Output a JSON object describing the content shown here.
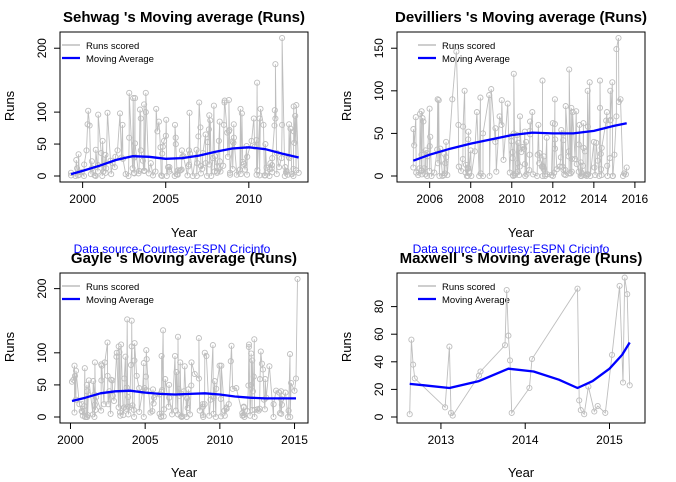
{
  "colors": {
    "runs": "#bebebe",
    "moving_average": "#0000ff",
    "source": "#0000ff"
  },
  "chart_data": [
    {
      "type": "line",
      "title": "Sehwag 's Moving average (Runs)",
      "xlabel": "Year",
      "ylabel": "Runs",
      "xlim": [
        1999,
        2013.2
      ],
      "ylim": [
        0,
        216
      ],
      "xticks": [
        2000,
        2005,
        2010
      ],
      "yticks": [
        0,
        50,
        100,
        200
      ],
      "legend": [
        "Runs scored",
        "Moving Average"
      ],
      "legend_position": "top-left",
      "source_note": "Data source-Courtesy:ESPN Cricinfo",
      "seed": 11,
      "spikes": [
        [
          2002.8,
          130
        ],
        [
          2003.8,
          130
        ],
        [
          2008.8,
          119
        ],
        [
          2010.5,
          146
        ],
        [
          2011.6,
          175
        ],
        [
          2012.0,
          216
        ],
        [
          2012.7,
          109
        ]
      ],
      "series": [
        {
          "name": "Runs scored",
          "x": [
            1999.3,
            1999.8,
            2000.5,
            2001.2,
            2001.5,
            2001.8,
            2002.1,
            2002.4,
            2002.8,
            2003.1,
            2003.5,
            2003.8,
            2004.1,
            2004.5,
            2004.9,
            2005.2,
            2005.6,
            2006.0,
            2006.4,
            2006.9,
            2007.4,
            2007.9,
            2008.2,
            2008.5,
            2008.8,
            2009.1,
            2009.5,
            2009.9,
            2010.3,
            2010.7,
            2011.0,
            2011.3,
            2011.6,
            2012.0,
            2012.4,
            2012.7,
            2013.0
          ],
          "y": [
            5,
            2,
            3,
            55,
            99,
            20,
            40,
            80,
            60,
            30,
            90,
            100,
            20,
            70,
            55,
            10,
            60,
            30,
            40,
            20,
            65,
            110,
            55,
            80,
            70,
            60,
            105,
            30,
            90,
            105,
            50,
            20,
            90,
            80,
            30,
            70,
            5
          ]
        },
        {
          "name": "Moving Average",
          "x": [
            1999.3,
            2000,
            2001,
            2002,
            2003,
            2004,
            2005,
            2006,
            2007,
            2008,
            2009,
            2010,
            2011,
            2012,
            2013
          ],
          "y": [
            3,
            8,
            16,
            25,
            31,
            30,
            27,
            28,
            32,
            38,
            43,
            45,
            42,
            35,
            29
          ]
        }
      ]
    },
    {
      "type": "line",
      "title": "Devilliers 's Moving average (Runs)",
      "xlabel": "Year",
      "ylabel": "Runs",
      "xlim": [
        2004.7,
        2016.2
      ],
      "ylim": [
        0,
        162
      ],
      "xticks": [
        2006,
        2008,
        2010,
        2012,
        2014,
        2016
      ],
      "yticks": [
        0,
        50,
        100,
        150
      ],
      "legend": [
        "Runs scored",
        "Moving Average"
      ],
      "legend_position": "top-left",
      "source_note": "Data source-Courtesy:ESPN Cricinfo",
      "seed": 23,
      "spikes": [
        [
          2007.3,
          146
        ],
        [
          2009.0,
          102
        ],
        [
          2010.1,
          120
        ],
        [
          2011.5,
          112
        ],
        [
          2012.8,
          125
        ],
        [
          2013.8,
          110
        ],
        [
          2014.3,
          112
        ],
        [
          2014.8,
          100
        ],
        [
          2015.1,
          149
        ],
        [
          2015.2,
          162
        ]
      ],
      "series": [
        {
          "name": "Runs scored",
          "x": [
            2005.2,
            2005.6,
            2006.0,
            2006.4,
            2006.8,
            2007.1,
            2007.4,
            2007.7,
            2008.0,
            2008.3,
            2008.6,
            2008.9,
            2009.2,
            2009.5,
            2009.8,
            2010.1,
            2010.4,
            2010.7,
            2011.0,
            2011.3,
            2011.7,
            2012.1,
            2012.5,
            2012.9,
            2013.3,
            2013.7,
            2014.0,
            2014.3,
            2014.6,
            2014.9,
            2015.1,
            2015.3,
            2015.6
          ],
          "y": [
            10,
            25,
            35,
            15,
            40,
            90,
            60,
            100,
            30,
            75,
            50,
            95,
            40,
            60,
            85,
            50,
            70,
            40,
            75,
            60,
            45,
            90,
            50,
            80,
            60,
            100,
            40,
            80,
            65,
            110,
            70,
            90,
            10
          ]
        },
        {
          "name": "Moving Average",
          "x": [
            2005.2,
            2006,
            2007,
            2008,
            2009,
            2010,
            2011,
            2012,
            2013,
            2014,
            2015,
            2015.6
          ],
          "y": [
            18,
            25,
            32,
            38,
            43,
            48,
            51,
            50,
            50,
            53,
            59,
            62
          ]
        }
      ]
    },
    {
      "type": "line",
      "title": "Gayle 's Moving average (Runs)",
      "xlabel": "Year",
      "ylabel": "Runs",
      "xlim": [
        1999.7,
        2015.5
      ],
      "ylim": [
        0,
        215
      ],
      "xticks": [
        2000,
        2005,
        2010,
        2015
      ],
      "yticks": [
        0,
        50,
        100,
        200
      ],
      "legend": [
        "Runs scored",
        "Moving Average"
      ],
      "legend_position": "top-left",
      "seed": 37,
      "spikes": [
        [
          2003.8,
          152
        ],
        [
          2004.1,
          150
        ],
        [
          2006.2,
          135
        ],
        [
          2007.2,
          125
        ],
        [
          2008.6,
          123
        ],
        [
          2012.1,
          99
        ],
        [
          2015.2,
          215
        ]
      ],
      "series": [
        {
          "name": "Runs scored",
          "x": [
            2000.1,
            2000.6,
            2001.1,
            2001.6,
            2002.1,
            2002.6,
            2003.1,
            2003.6,
            2004.1,
            2004.6,
            2005.1,
            2005.6,
            2006.1,
            2006.6,
            2007.1,
            2007.6,
            2008.1,
            2008.6,
            2009.1,
            2009.6,
            2010.1,
            2010.6,
            2011.1,
            2011.6,
            2012.1,
            2012.6,
            2013.1,
            2013.6,
            2014.1,
            2014.6,
            2015.1
          ],
          "y": [
            55,
            20,
            50,
            35,
            80,
            40,
            100,
            60,
            110,
            45,
            90,
            30,
            95,
            50,
            70,
            40,
            85,
            60,
            95,
            30,
            80,
            20,
            45,
            15,
            50,
            10,
            30,
            20,
            40,
            10,
            60
          ]
        },
        {
          "name": "Moving Average",
          "x": [
            2000.1,
            2001,
            2002,
            2003,
            2004,
            2005,
            2006,
            2007,
            2008,
            2009,
            2010,
            2011,
            2012,
            2013,
            2014,
            2015.1
          ],
          "y": [
            25,
            30,
            37,
            40,
            41,
            38,
            36,
            35,
            36,
            37,
            35,
            32,
            30,
            29,
            29,
            29
          ]
        }
      ]
    },
    {
      "type": "line",
      "title": "Maxwell 's Moving average (Runs)",
      "xlabel": "Year",
      "ylabel": "Runs",
      "xlim": [
        2012.55,
        2015.35
      ],
      "ylim": [
        0,
        100
      ],
      "xticks": [
        2013,
        2014,
        2015
      ],
      "yticks": [
        0,
        20,
        40,
        60,
        80
      ],
      "legend": [
        "Runs scored",
        "Moving Average"
      ],
      "legend_position": "top-left",
      "series": [
        {
          "name": "Runs scored",
          "x": [
            2012.63,
            2012.65,
            2012.67,
            2012.69,
            2013.05,
            2013.1,
            2013.12,
            2013.14,
            2013.45,
            2013.47,
            2013.76,
            2013.78,
            2013.8,
            2013.82,
            2013.84,
            2014.05,
            2014.08,
            2014.62,
            2014.64,
            2014.66,
            2014.7,
            2014.75,
            2014.82,
            2014.86,
            2014.95,
            2015.03,
            2015.12,
            2015.16,
            2015.18,
            2015.21,
            2015.24
          ],
          "y": [
            2,
            56,
            38,
            28,
            7,
            51,
            3,
            1,
            30,
            33,
            52,
            92,
            59,
            41,
            3,
            21,
            42,
            93,
            12,
            5,
            2,
            22,
            4,
            8,
            3,
            45,
            95,
            25,
            101,
            89,
            23
          ]
        },
        {
          "name": "Moving Average",
          "x": [
            2012.63,
            2012.8,
            2013.1,
            2013.45,
            2013.8,
            2014.1,
            2014.4,
            2014.62,
            2014.8,
            2015.0,
            2015.15,
            2015.24
          ],
          "y": [
            24,
            23,
            21,
            26,
            35,
            33,
            27,
            21,
            26,
            35,
            45,
            54
          ]
        }
      ]
    }
  ]
}
